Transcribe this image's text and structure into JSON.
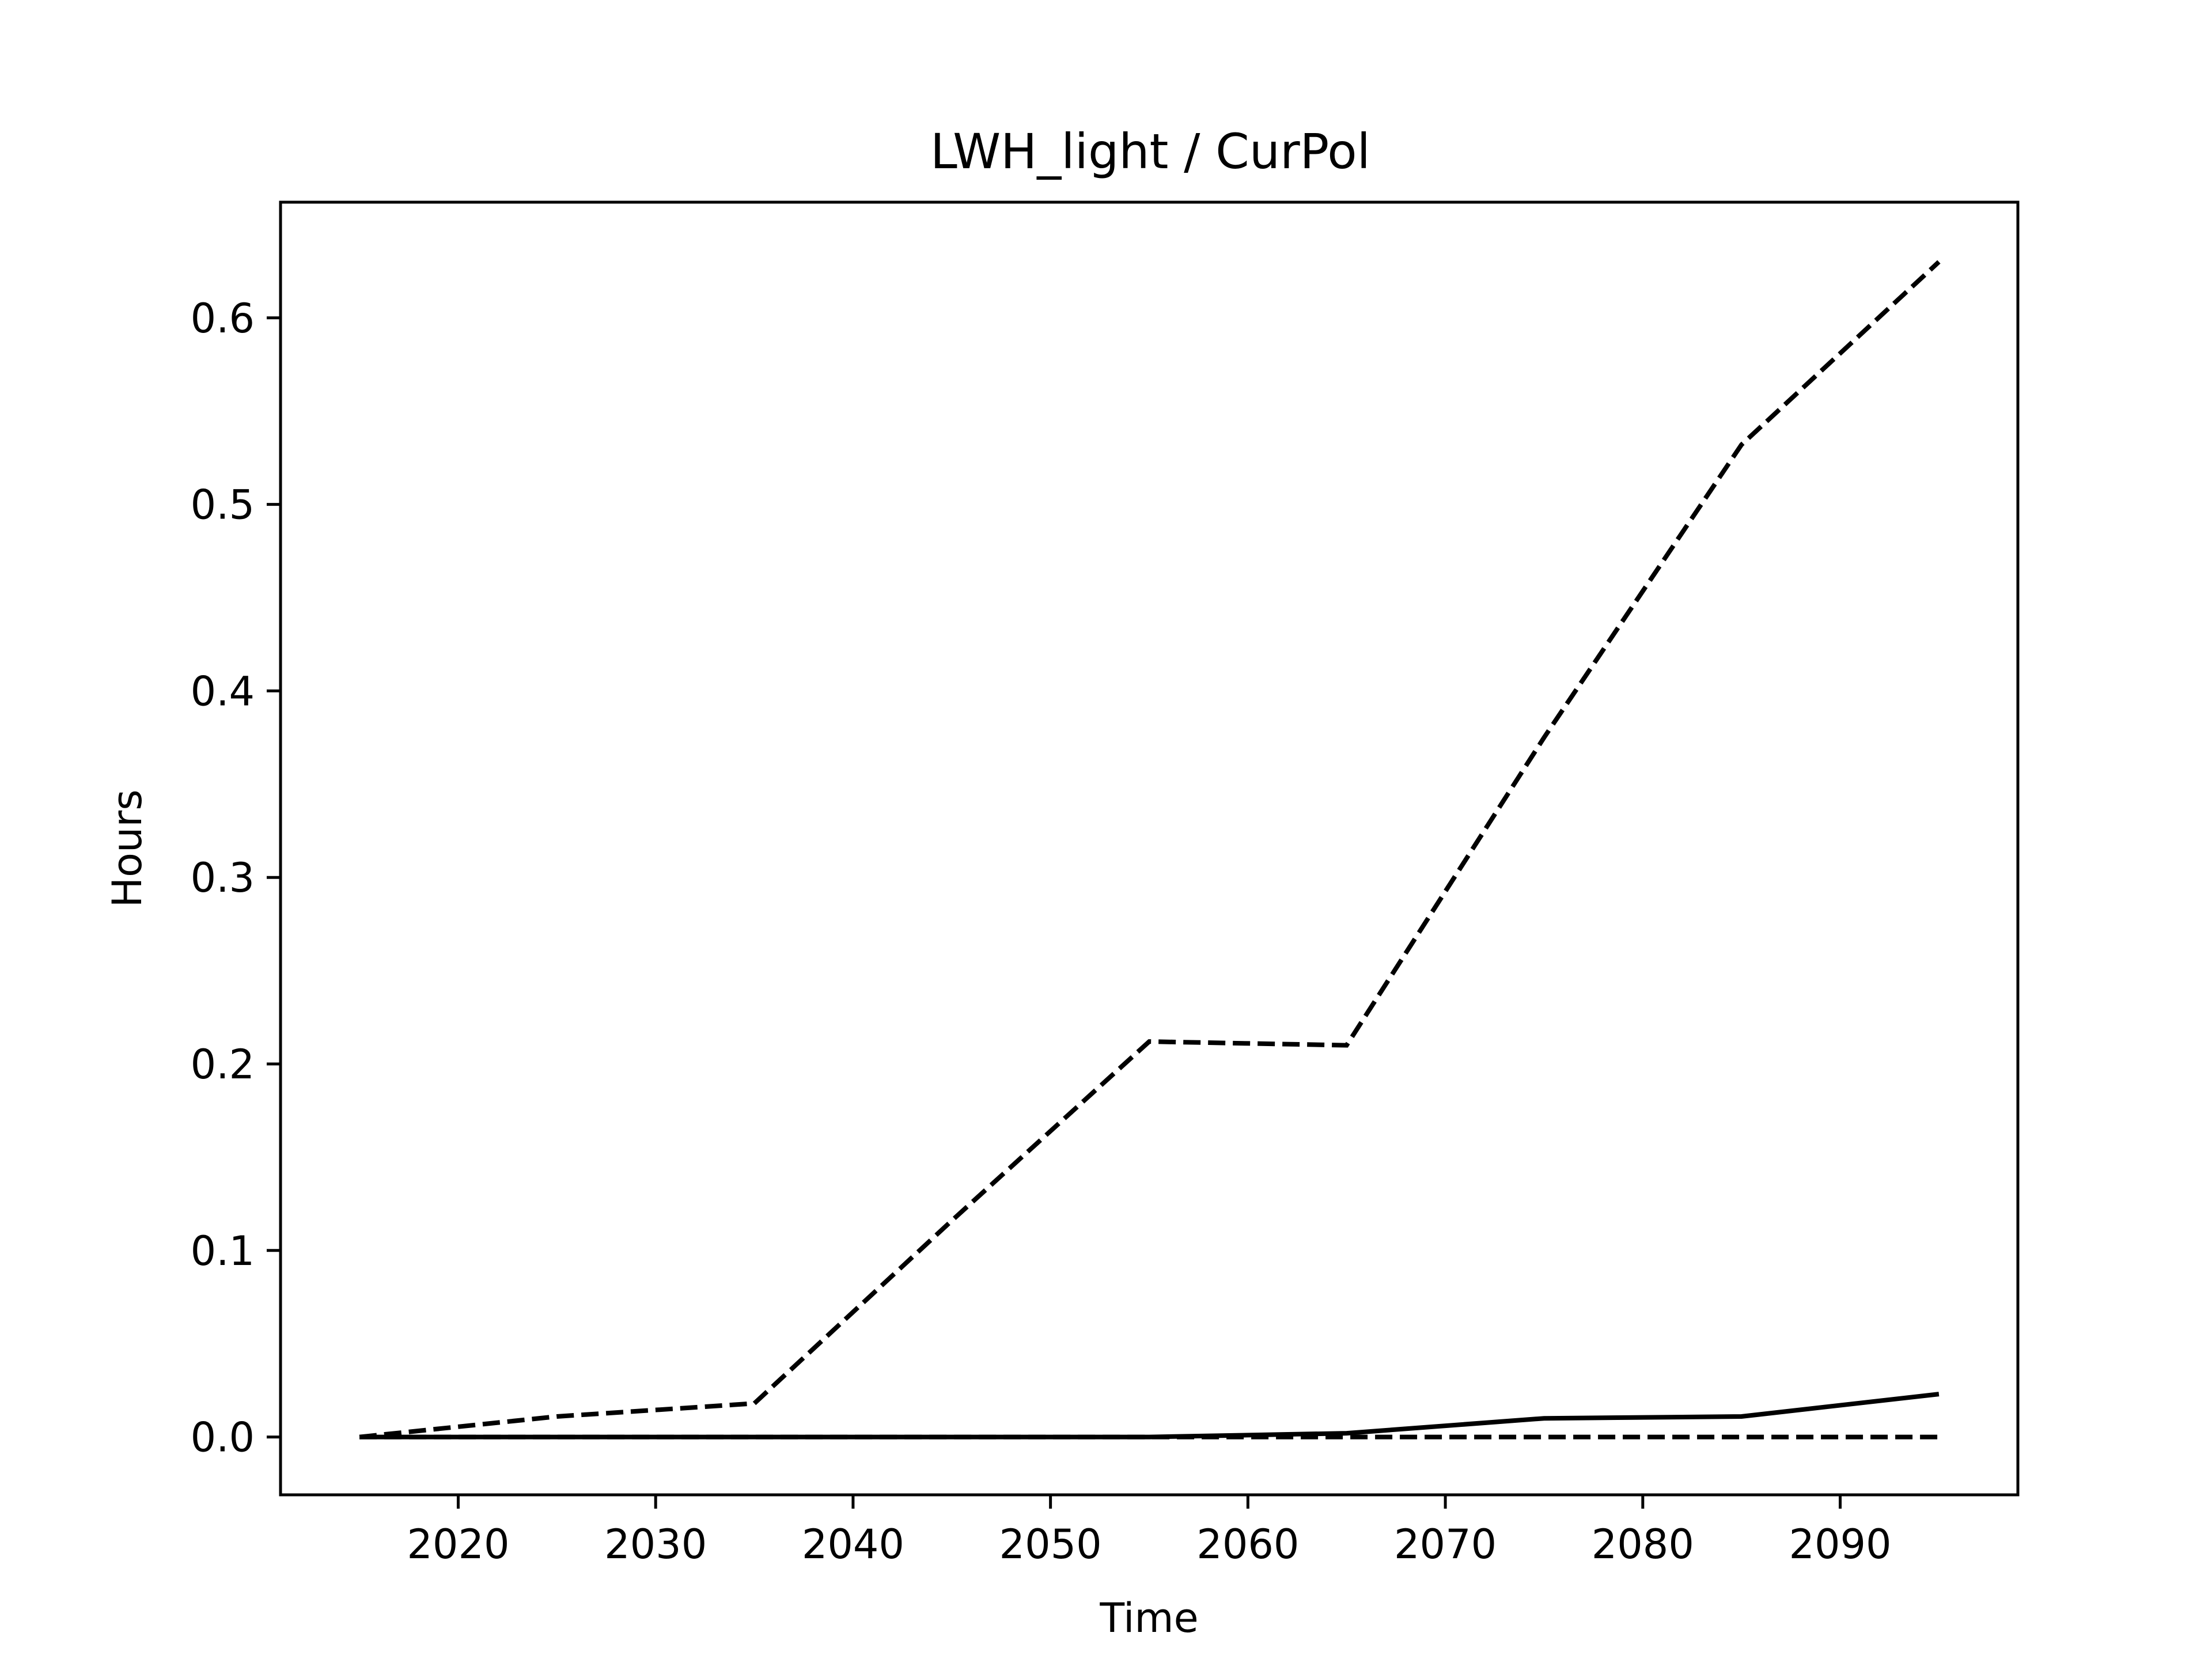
{
  "chart_data": {
    "type": "line",
    "title": "LWH_light / CurPol",
    "xlabel": "Time",
    "ylabel": "Hours",
    "xlim": [
      2011,
      2099
    ],
    "ylim": [
      -0.031,
      0.662
    ],
    "xticks": [
      2020,
      2030,
      2040,
      2050,
      2060,
      2070,
      2080,
      2090
    ],
    "yticks": [
      0.0,
      0.1,
      0.2,
      0.3,
      0.4,
      0.5,
      0.6
    ],
    "ytick_labels": [
      "0.0",
      "0.1",
      "0.2",
      "0.3",
      "0.4",
      "0.5",
      "0.6"
    ],
    "grid": false,
    "x": [
      2015,
      2025,
      2035,
      2045,
      2055,
      2065,
      2075,
      2085,
      2095
    ],
    "series": [
      {
        "style": "dashed",
        "color": "#000000",
        "values": [
          0.0,
          0.011,
          0.018,
          0.116,
          0.212,
          0.21,
          0.375,
          0.532,
          0.63
        ]
      },
      {
        "style": "solid",
        "color": "#000000",
        "values": [
          0.0,
          0.0,
          0.0,
          0.0,
          0.0,
          0.002,
          0.01,
          0.011,
          0.023
        ]
      },
      {
        "style": "dashed",
        "color": "#000000",
        "values": [
          0.0,
          0.0,
          0.0,
          0.0,
          0.0,
          0.0,
          0.0,
          0.0,
          0.0
        ]
      }
    ]
  }
}
